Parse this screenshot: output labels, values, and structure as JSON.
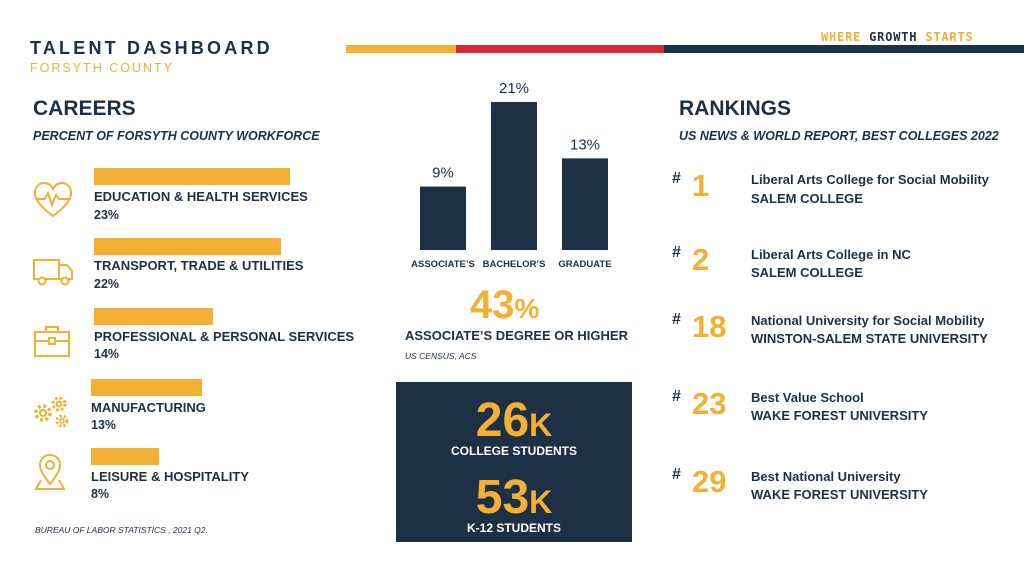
{
  "header": {
    "title": "TALENT DASHBOARD",
    "subtitle": "FORSYTH COUNTY",
    "tagline": {
      "part1": "WHERE",
      "part2": "GROWTH",
      "part3": "STARTS"
    }
  },
  "colors": {
    "navy": "#1e3046",
    "gold": "#f3b035",
    "red": "#d7283a"
  },
  "careers": {
    "title": "CAREERS",
    "subtitle": "PERCENT OF FORSYTH COUNTY WORKFORCE",
    "source": "BUREAU OF LABOR STATISTICS , 2021 Q2.",
    "items": [
      {
        "label": "EDUCATION & HEALTH SERVICES",
        "value": "23%",
        "pct": 23,
        "icon": "heart-pulse-icon"
      },
      {
        "label": "TRANSPORT, TRADE & UTILITIES",
        "value": "22%",
        "pct": 22,
        "icon": "truck-icon"
      },
      {
        "label": "PROFESSIONAL & PERSONAL SERVICES",
        "value": "14%",
        "pct": 14,
        "icon": "briefcase-icon"
      },
      {
        "label": "MANUFACTURING",
        "value": "13%",
        "pct": 13,
        "icon": "gears-icon"
      },
      {
        "label": "LEISURE & HOSPITALITY",
        "value": "8%",
        "pct": 8,
        "icon": "map-pin-icon"
      }
    ]
  },
  "education": {
    "big_number": "43",
    "big_symbol": "%",
    "big_label": "ASSOCIATE’S DEGREE OR HIGHER",
    "source": "US CENSUS, ACS"
  },
  "chart_data": {
    "type": "bar",
    "categories": [
      "ASSOCIATE’S",
      "BACHELOR’S",
      "GRADUATE"
    ],
    "values": [
      9,
      21,
      13
    ],
    "value_labels": [
      "9%",
      "21%",
      "13%"
    ],
    "title": "",
    "xlabel": "",
    "ylabel": "",
    "ylim": [
      0,
      21
    ],
    "grid": false
  },
  "students": {
    "college_num": "26",
    "college_suffix": "K",
    "college_label": "COLLEGE STUDENTS",
    "k12_num": "53",
    "k12_suffix": "K",
    "k12_label": "K-12 STUDENTS"
  },
  "rankings": {
    "title": "RANKINGS",
    "subtitle": "US NEWS & WORLD REPORT, BEST COLLEGES 2022",
    "hash": "#",
    "items": [
      {
        "rank": "1",
        "title": "Liberal Arts College for Social Mobility",
        "school": "SALEM COLLEGE"
      },
      {
        "rank": "2",
        "title": "Liberal Arts College in NC",
        "school": "SALEM COLLEGE"
      },
      {
        "rank": "18",
        "title": "National University for Social Mobility",
        "school": "WINSTON-SALEM STATE UNIVERSITY"
      },
      {
        "rank": "23",
        "title": "Best Value School",
        "school": "WAKE FOREST UNIVERSITY"
      },
      {
        "rank": "29",
        "title": "Best National University",
        "school": "WAKE FOREST UNIVERSITY"
      }
    ]
  }
}
